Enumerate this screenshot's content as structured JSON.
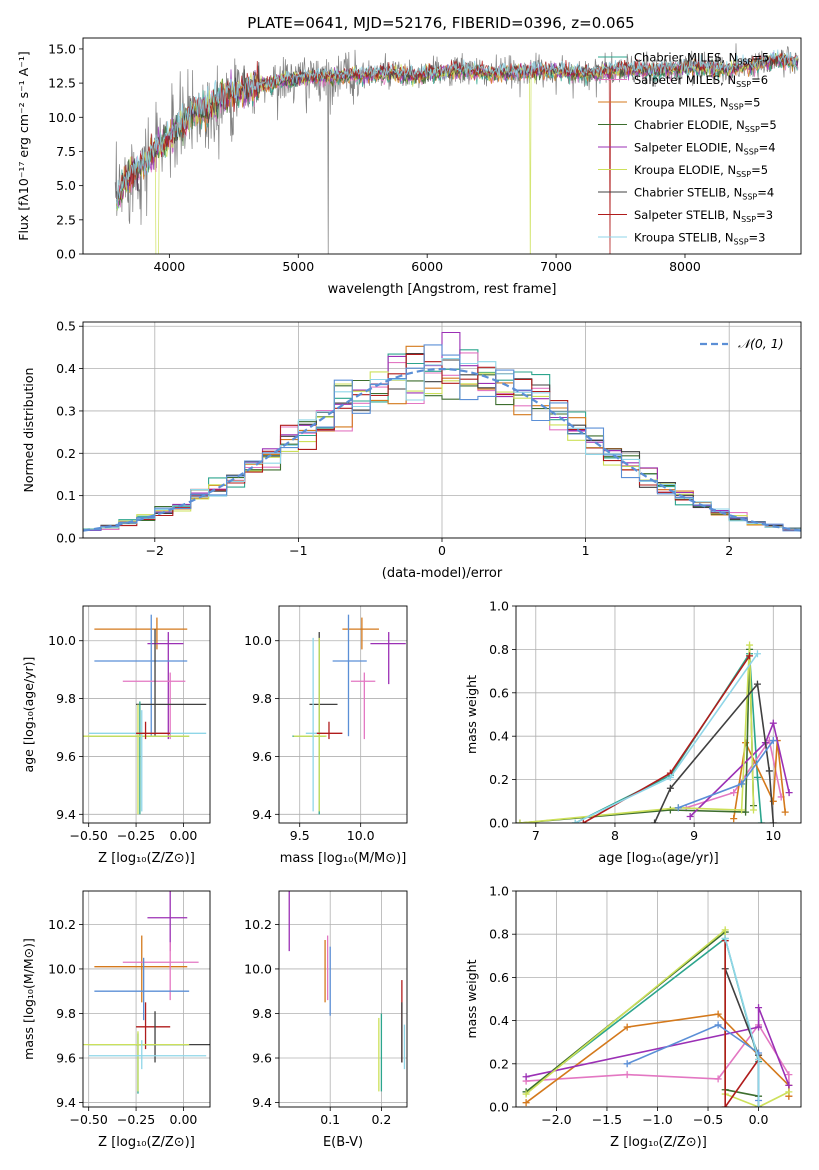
{
  "chart_data": [
    {
      "id": "spectrum",
      "type": "line",
      "title": "PLATE=0641, MJD=52176, FIBERID=0396, z=0.065",
      "xlabel": "wavelength [Angstrom, rest frame]",
      "ylabel": "Flux [fλ10⁻¹⁷ erg cm⁻² s⁻¹ A⁻¹]",
      "xlim": [
        3330,
        8900
      ],
      "ylim": [
        0,
        15.8
      ],
      "xticks": [
        4000,
        5000,
        6000,
        7000,
        8000
      ],
      "yticks": [
        0.0,
        2.5,
        5.0,
        7.5,
        10.0,
        12.5,
        15.0
      ],
      "grid": false,
      "legend": "top-right",
      "continuum": {
        "x": [
          3580,
          3650,
          3700,
          3800,
          3900,
          4000,
          4100,
          4200,
          4300,
          4400,
          4500,
          4700,
          4900,
          5100,
          5300,
          5500,
          5700,
          5900,
          6100,
          6300,
          6500,
          6700,
          6900,
          7100,
          7300,
          7500,
          7700,
          7900,
          8100,
          8300,
          8500,
          8700,
          8880
        ],
        "y": [
          3.5,
          5.2,
          5.8,
          6.5,
          7.8,
          8.5,
          9.5,
          10.5,
          10.6,
          11.5,
          11.8,
          12.3,
          12.7,
          12.9,
          13.0,
          13.1,
          13.2,
          13.0,
          13.3,
          13.4,
          13.2,
          13.3,
          13.4,
          13.3,
          13.2,
          13.5,
          13.4,
          13.5,
          13.7,
          13.5,
          13.8,
          14.2,
          14.1
        ]
      },
      "series": [
        {
          "name": "Chabrier MILES, N_SSP=5",
          "color": "#2ca58d",
          "n": "5"
        },
        {
          "name": "Salpeter MILES, N_SSP=6",
          "color": "#e377c2",
          "n": "6"
        },
        {
          "name": "Kroupa MILES, N_SSP=5",
          "color": "#d4791c",
          "n": "5"
        },
        {
          "name": "Chabrier ELODIE, N_SSP=5",
          "color": "#3d6e2e",
          "n": "5"
        },
        {
          "name": "Salpeter ELODIE, N_SSP=4",
          "color": "#9b30b5",
          "n": "4"
        },
        {
          "name": "Kroupa ELODIE, N_SSP=5",
          "color": "#cde05a",
          "n": "5"
        },
        {
          "name": "Chabrier STELIB, N_SSP=4",
          "color": "#404040",
          "n": "4"
        },
        {
          "name": "Salpeter STELIB, N_SSP=3",
          "color": "#b01c1c",
          "n": "3"
        },
        {
          "name": "Kroupa STELIB, N_SSP=3",
          "color": "#8fd6e8",
          "n": "3"
        }
      ]
    },
    {
      "id": "residuals",
      "type": "line",
      "xlabel": "(data-model)/error",
      "ylabel": "Normed distribution",
      "xlim": [
        -2.5,
        2.5
      ],
      "ylim": [
        0,
        0.51
      ],
      "xticks": [
        -2,
        -1,
        0,
        1,
        2
      ],
      "yticks": [
        0.0,
        0.1,
        0.2,
        0.3,
        0.4,
        0.5
      ],
      "grid": true,
      "legend": "top-right",
      "reference": {
        "name": "𝒩(0, 1)",
        "color": "#5b8fd6"
      }
    },
    {
      "id": "age-vs-Z",
      "type": "scatter",
      "xlabel": "Z [log₁₀(Z/Z⊙)]",
      "ylabel": "age  [log₁₀(age/yr)]",
      "xlim": [
        -0.53,
        0.14
      ],
      "ylim": [
        9.37,
        10.12
      ],
      "xticks": [
        -0.5,
        -0.25,
        0.0
      ],
      "xticklabels": [
        "−0.50",
        "−0.25",
        "0.00"
      ],
      "yticks": [
        9.4,
        9.6,
        9.8,
        10.0
      ],
      "yticklabels": [
        "9.4",
        "9.6",
        "9.8",
        "10.0"
      ],
      "grid": true,
      "points": [
        {
          "color": "#d4791c",
          "x": -0.14,
          "xl": -0.47,
          "xh": 0.02,
          "y": 10.04,
          "yl": 9.97,
          "yh": 10.08
        },
        {
          "color": "#9b30b5",
          "x": -0.08,
          "xl": -0.19,
          "xh": 0.0,
          "y": 9.99,
          "yl": 9.66,
          "yh": 10.03
        },
        {
          "color": "#5b8fd6",
          "x": -0.17,
          "xl": -0.47,
          "xh": 0.02,
          "y": 9.93,
          "yl": 9.67,
          "yh": 10.09
        },
        {
          "color": "#e377c2",
          "x": -0.07,
          "xl": -0.32,
          "xh": 0.01,
          "y": 9.86,
          "yl": 9.66,
          "yh": 9.89
        },
        {
          "color": "#404040",
          "x": -0.15,
          "xl": -0.25,
          "xh": 0.12,
          "y": 9.78,
          "yl": 9.67,
          "yh": 10.04
        },
        {
          "color": "#2ca58d",
          "x": -0.23,
          "xl": -0.5,
          "xh": 0.03,
          "y": 9.67,
          "yl": 9.4,
          "yh": 9.79
        },
        {
          "color": "#cde05a",
          "x": -0.24,
          "xl": -0.53,
          "xh": 0.03,
          "y": 9.67,
          "yl": 9.4,
          "yh": 9.78
        },
        {
          "color": "#8fd6e8",
          "x": -0.22,
          "xl": -0.5,
          "xh": 0.12,
          "y": 9.68,
          "yl": 9.41,
          "yh": 9.76
        },
        {
          "color": "#b01c1c",
          "x": -0.2,
          "xl": -0.25,
          "xh": -0.07,
          "y": 9.68,
          "yl": 9.66,
          "yh": 9.72
        }
      ]
    },
    {
      "id": "age-vs-mass",
      "type": "scatter",
      "xlabel": "mass [log₁₀(M/M⊙)]",
      "ylabel": "",
      "xlim": [
        9.33,
        10.38
      ],
      "ylim": [
        9.37,
        10.12
      ],
      "xticks": [
        9.5,
        10.0
      ],
      "xticklabels": [
        "9.5",
        "10.0"
      ],
      "yticks": [
        9.4,
        9.6,
        9.8,
        10.0
      ],
      "yticklabels": [
        "9.4",
        "9.6",
        "9.8",
        "10.0"
      ],
      "grid": true,
      "points": [
        {
          "color": "#d4791c",
          "x": 10.01,
          "xl": 9.85,
          "xh": 10.15,
          "y": 10.04,
          "yl": 9.97,
          "yh": 10.08
        },
        {
          "color": "#9b30b5",
          "x": 10.23,
          "xl": 10.08,
          "xh": 10.37,
          "y": 9.99,
          "yl": 9.85,
          "yh": 10.03
        },
        {
          "color": "#5b8fd6",
          "x": 9.9,
          "xl": 9.77,
          "xh": 10.05,
          "y": 9.93,
          "yl": 9.67,
          "yh": 10.09
        },
        {
          "color": "#e377c2",
          "x": 10.03,
          "xl": 9.92,
          "xh": 10.12,
          "y": 9.86,
          "yl": 9.66,
          "yh": 9.89
        },
        {
          "color": "#404040",
          "x": 9.66,
          "xl": 9.58,
          "xh": 9.81,
          "y": 9.78,
          "yl": 9.67,
          "yh": 10.03
        },
        {
          "color": "#2ca58d",
          "x": 9.66,
          "xl": 9.44,
          "xh": 9.71,
          "y": 9.67,
          "yl": 9.4,
          "yh": 9.99
        },
        {
          "color": "#cde05a",
          "x": 9.66,
          "xl": 9.45,
          "xh": 9.72,
          "y": 9.67,
          "yl": 9.41,
          "yh": 10.01
        },
        {
          "color": "#8fd6e8",
          "x": 9.61,
          "xl": 9.55,
          "xh": 9.68,
          "y": 9.68,
          "yl": 9.41,
          "yh": 10.01
        },
        {
          "color": "#b01c1c",
          "x": 9.74,
          "xl": 9.64,
          "xh": 9.85,
          "y": 9.68,
          "yl": 9.66,
          "yh": 9.72
        }
      ]
    },
    {
      "id": "weight-vs-age",
      "type": "line",
      "xlabel": "age  [log₁₀(age/yr)]",
      "ylabel": "mass weight",
      "xlim": [
        6.75,
        10.35
      ],
      "ylim": [
        0,
        1.0
      ],
      "xticks": [
        7,
        8,
        9,
        10
      ],
      "xticklabels": [
        "7",
        "8",
        "9",
        "10"
      ],
      "yticks": [
        0.0,
        0.2,
        0.4,
        0.6,
        0.8,
        1.0
      ],
      "yticklabels": [
        "0.0",
        "0.2",
        "0.4",
        "0.6",
        "0.8",
        "1.0"
      ],
      "grid": true,
      "series": [
        {
          "color": "#2ca58d",
          "x": [
            7.5,
            8.7,
            9.7,
            9.8,
            9.85
          ],
          "y": [
            0.0,
            0.22,
            0.78,
            0.21,
            0.0
          ]
        },
        {
          "color": "#e377c2",
          "x": [
            8.9,
            9.5,
            9.95,
            10.1
          ],
          "y": [
            0.07,
            0.14,
            0.38,
            0.12
          ]
        },
        {
          "color": "#d4791c",
          "x": [
            9.5,
            9.65,
            10.0,
            10.05,
            10.15
          ],
          "y": [
            0.02,
            0.37,
            0.1,
            0.38,
            0.05
          ]
        },
        {
          "color": "#3d6e2e",
          "x": [
            6.8,
            8.7,
            9.65,
            9.7,
            9.75
          ],
          "y": [
            0.0,
            0.06,
            0.05,
            0.8,
            0.08
          ]
        },
        {
          "color": "#9b30b5",
          "x": [
            8.95,
            9.9,
            10.0,
            10.2
          ],
          "y": [
            0.03,
            0.37,
            0.46,
            0.14
          ]
        },
        {
          "color": "#cde05a",
          "x": [
            6.8,
            8.8,
            9.6,
            9.7,
            9.75
          ],
          "y": [
            0.0,
            0.07,
            0.06,
            0.82,
            0.06
          ]
        },
        {
          "color": "#404040",
          "x": [
            8.5,
            8.7,
            9.8,
            9.95,
            10.0
          ],
          "y": [
            0.0,
            0.16,
            0.64,
            0.24,
            0.0
          ]
        },
        {
          "color": "#b01c1c",
          "x": [
            7.6,
            8.7,
            9.7
          ],
          "y": [
            0.0,
            0.23,
            0.77
          ]
        },
        {
          "color": "#5b8fd6",
          "x": [
            8.8,
            9.6,
            10.0
          ],
          "y": [
            0.07,
            0.18,
            0.38
          ]
        },
        {
          "color": "#8fd6e8",
          "x": [
            7.5,
            8.7,
            9.8
          ],
          "y": [
            0.0,
            0.21,
            0.78
          ]
        }
      ]
    },
    {
      "id": "mass-vs-Z",
      "type": "scatter",
      "xlabel": "Z [log₁₀(Z/Z⊙)]",
      "ylabel": "mass [log₁₀(M/M⊙)]",
      "xlim": [
        -0.53,
        0.14
      ],
      "ylim": [
        9.38,
        10.35
      ],
      "xticks": [
        -0.5,
        -0.25,
        0.0
      ],
      "xticklabels": [
        "−0.50",
        "−0.25",
        "0.00"
      ],
      "yticks": [
        9.4,
        9.6,
        9.8,
        10.0,
        10.2
      ],
      "yticklabels": [
        "9.4",
        "9.6",
        "9.8",
        "10.0",
        "10.2"
      ],
      "grid": true,
      "points": [
        {
          "color": "#9b30b5",
          "x": -0.07,
          "xl": -0.19,
          "xh": 0.02,
          "y": 10.23,
          "yl": 10.08,
          "yh": 10.37
        },
        {
          "color": "#d4791c",
          "x": -0.22,
          "xl": -0.47,
          "xh": 0.02,
          "y": 10.01,
          "yl": 9.85,
          "yh": 10.15
        },
        {
          "color": "#e377c2",
          "x": -0.07,
          "xl": -0.32,
          "xh": 0.08,
          "y": 10.03,
          "yl": 9.86,
          "yh": 10.12
        },
        {
          "color": "#5b8fd6",
          "x": -0.21,
          "xl": -0.47,
          "xh": 0.03,
          "y": 9.9,
          "yl": 9.77,
          "yh": 10.05
        },
        {
          "color": "#b01c1c",
          "x": -0.2,
          "xl": -0.25,
          "xh": -0.07,
          "y": 9.74,
          "yl": 9.64,
          "yh": 9.85
        },
        {
          "color": "#404040",
          "x": -0.15,
          "xl": -0.25,
          "xh": 0.14,
          "y": 9.66,
          "yl": 9.58,
          "yh": 9.81
        },
        {
          "color": "#2ca58d",
          "x": -0.24,
          "xl": -0.5,
          "xh": 0.02,
          "y": 9.66,
          "yl": 9.44,
          "yh": 9.71
        },
        {
          "color": "#cde05a",
          "x": -0.24,
          "xl": -0.53,
          "xh": 0.03,
          "y": 9.66,
          "yl": 9.45,
          "yh": 9.72
        },
        {
          "color": "#8fd6e8",
          "x": -0.22,
          "xl": -0.5,
          "xh": 0.12,
          "y": 9.61,
          "yl": 9.55,
          "yh": 9.68
        }
      ]
    },
    {
      "id": "mass-vs-ebv",
      "type": "scatter",
      "xlabel": "E(B-V)",
      "ylabel": "",
      "xlim": [
        0.0,
        0.25
      ],
      "ylim": [
        9.38,
        10.35
      ],
      "xticks": [
        0.1,
        0.2
      ],
      "xticklabels": [
        "0.1",
        "0.2"
      ],
      "yticks": [
        9.4,
        9.6,
        9.8,
        10.0,
        10.2
      ],
      "yticklabels": [
        "9.4",
        "9.6",
        "9.8",
        "10.0",
        "10.2"
      ],
      "grid": true,
      "points": [
        {
          "color": "#9b30b5",
          "x": 0.02,
          "xl": 0.02,
          "xh": 0.02,
          "y": 10.23,
          "yl": 10.08,
          "yh": 10.37
        },
        {
          "color": "#d4791c",
          "x": 0.09,
          "xl": 0.09,
          "xh": 0.09,
          "y": 10.01,
          "yl": 9.85,
          "yh": 10.13
        },
        {
          "color": "#e377c2",
          "x": 0.095,
          "xl": 0.095,
          "xh": 0.095,
          "y": 10.03,
          "yl": 9.86,
          "yh": 10.15
        },
        {
          "color": "#5b8fd6",
          "x": 0.1,
          "xl": 0.1,
          "xh": 0.1,
          "y": 9.9,
          "yl": 9.79,
          "yh": 10.1
        },
        {
          "color": "#2ca58d",
          "x": 0.2,
          "xl": 0.2,
          "xh": 0.2,
          "y": 9.66,
          "yl": 9.45,
          "yh": 9.8
        },
        {
          "color": "#cde05a",
          "x": 0.195,
          "xl": 0.195,
          "xh": 0.195,
          "y": 9.66,
          "yl": 9.45,
          "yh": 9.78
        },
        {
          "color": "#b01c1c",
          "x": 0.24,
          "xl": 0.24,
          "xh": 0.24,
          "y": 9.8,
          "yl": 9.58,
          "yh": 9.95
        },
        {
          "color": "#404040",
          "x": 0.24,
          "xl": 0.24,
          "xh": 0.24,
          "y": 9.7,
          "yl": 9.58,
          "yh": 9.85
        },
        {
          "color": "#8fd6e8",
          "x": 0.245,
          "xl": 0.245,
          "xh": 0.245,
          "y": 9.65,
          "yl": 9.55,
          "yh": 9.75
        }
      ]
    },
    {
      "id": "weight-vs-Z",
      "type": "line",
      "xlabel": "Z [log₁₀(Z/Z⊙)]",
      "ylabel": "mass weight",
      "xlim": [
        -2.4,
        0.42
      ],
      "ylim": [
        0,
        1.0
      ],
      "xticks": [
        -2.0,
        -1.5,
        -1.0,
        -0.5,
        0.0
      ],
      "xticklabels": [
        "−2.0",
        "−1.5",
        "−1.0",
        "−0.5",
        "0.0"
      ],
      "yticks": [
        0.0,
        0.2,
        0.4,
        0.6,
        0.8,
        1.0
      ],
      "yticklabels": [
        "0.0",
        "0.2",
        "0.4",
        "0.6",
        "0.8",
        "1.0"
      ],
      "grid": true,
      "series": [
        {
          "color": "#2ca58d",
          "x": [
            -2.3,
            -0.33,
            0.0,
            0.0
          ],
          "y": [
            0.07,
            0.78,
            0.21,
            0.0
          ]
        },
        {
          "color": "#e377c2",
          "x": [
            -2.3,
            -1.3,
            -0.4,
            0.0,
            0.3,
            0.3
          ],
          "y": [
            0.12,
            0.15,
            0.13,
            0.38,
            0.15,
            0.05
          ]
        },
        {
          "color": "#d4791c",
          "x": [
            -2.3,
            -1.3,
            -0.4,
            0.0,
            0.3,
            0.3
          ],
          "y": [
            0.02,
            0.37,
            0.43,
            0.24,
            0.1,
            0.05
          ]
        },
        {
          "color": "#3d6e2e",
          "x": [
            -2.3,
            -0.33,
            -0.33,
            0.0
          ],
          "y": [
            0.07,
            0.81,
            0.08,
            0.05
          ]
        },
        {
          "color": "#9b30b5",
          "x": [
            -2.3,
            0.0,
            0.0,
            0.3
          ],
          "y": [
            0.14,
            0.37,
            0.46,
            0.1
          ]
        },
        {
          "color": "#cde05a",
          "x": [
            -2.3,
            -0.33,
            -0.33,
            0.0,
            0.3
          ],
          "y": [
            0.06,
            0.82,
            0.06,
            0.0,
            0.07
          ]
        },
        {
          "color": "#404040",
          "x": [
            -0.33,
            0.0,
            0.0
          ],
          "y": [
            0.64,
            0.24,
            0.0
          ]
        },
        {
          "color": "#b01c1c",
          "x": [
            -0.33,
            -0.33,
            0.0
          ],
          "y": [
            0.77,
            0.0,
            0.22
          ]
        },
        {
          "color": "#5b8fd6",
          "x": [
            -1.3,
            -0.4,
            0.0,
            0.0
          ],
          "y": [
            0.2,
            0.38,
            0.25,
            0.03
          ]
        },
        {
          "color": "#8fd6e8",
          "x": [
            -0.33,
            0.0,
            0.0
          ],
          "y": [
            0.78,
            0.22,
            0.0
          ]
        }
      ]
    }
  ]
}
